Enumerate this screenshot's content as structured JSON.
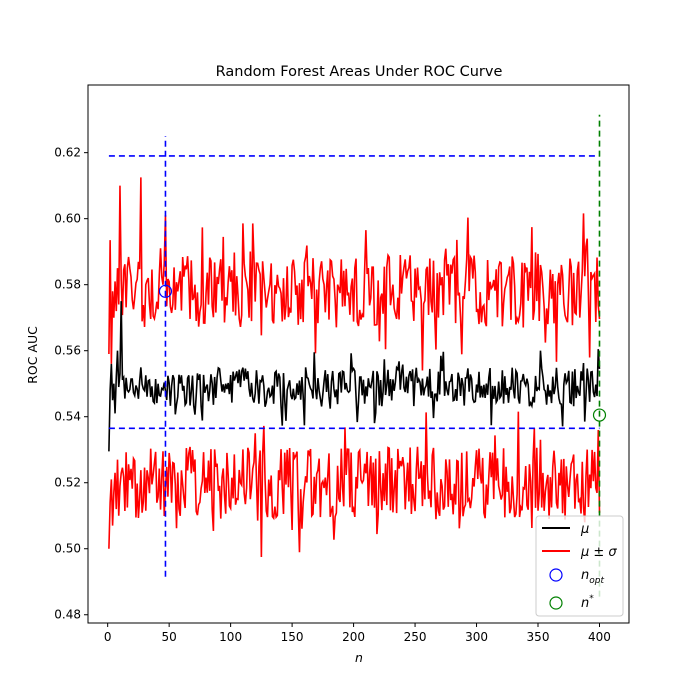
{
  "chart_data": {
    "type": "line",
    "title": "Random Forest Areas Under ROC Curve",
    "xlabel": "n",
    "ylabel": "ROC AUC",
    "xlim": [
      -16,
      424
    ],
    "ylim": [
      0.4775,
      0.6405
    ],
    "x_ticks": [
      0,
      50,
      100,
      150,
      200,
      250,
      300,
      350,
      400
    ],
    "y_ticks": [
      0.48,
      0.5,
      0.52,
      0.54,
      0.56,
      0.58,
      0.6,
      0.62
    ],
    "y_tick_labels": [
      "0.48",
      "0.50",
      "0.52",
      "0.54",
      "0.56",
      "0.58",
      "0.60",
      "0.62"
    ],
    "n_points": 400,
    "grid": false,
    "legend_position": "lower-right",
    "series": [
      {
        "name": "μ",
        "color": "#000000",
        "mean_level": 0.549,
        "fluctuation": 0.006,
        "first_values": [
          0.5295,
          0.548,
          0.556,
          0.545,
          0.55,
          0.541,
          0.552,
          0.56,
          0.549,
          0.553,
          0.575
        ]
      },
      {
        "name": "μ ± σ",
        "color": "#ff0000",
        "upper_mean_level": 0.578,
        "lower_mean_level": 0.52,
        "fluctuation": 0.011,
        "upper_first_values": [
          0.559,
          0.5935,
          0.556,
          0.578,
          0.57,
          0.581,
          0.572,
          0.585,
          0.574,
          0.61
        ],
        "lower_first_values": [
          0.5,
          0.514,
          0.521,
          0.507,
          0.517,
          0.523,
          0.512,
          0.527,
          0.51,
          0.519
        ],
        "upper_peak": 0.6125,
        "lower_minimum": 0.4975
      }
    ],
    "reference_lines": [
      {
        "orientation": "horizontal",
        "y": 0.619,
        "x_from": 1,
        "x_to": 400,
        "color": "#0000ff",
        "style": "dashed"
      },
      {
        "orientation": "horizontal",
        "y": 0.5365,
        "x_from": 1,
        "x_to": 400,
        "color": "#0000ff",
        "style": "dashed"
      },
      {
        "orientation": "vertical",
        "x": 47,
        "y_from": 0.4915,
        "y_to": 0.625,
        "color": "#0000ff",
        "style": "dashed"
      },
      {
        "orientation": "vertical",
        "x": 400,
        "y_from": 0.4855,
        "y_to": 0.6315,
        "color": "#008000",
        "style": "dashed"
      }
    ],
    "markers": [
      {
        "name": "n_opt",
        "x": 47,
        "y": 0.578,
        "color": "#0000ff",
        "shape": "open-circle"
      },
      {
        "name": "n*",
        "x": 400,
        "y": 0.5405,
        "color": "#008000",
        "shape": "open-circle"
      }
    ],
    "legend": [
      {
        "label": "μ",
        "kind": "line",
        "color": "#000000"
      },
      {
        "label": "μ ± σ",
        "kind": "line",
        "color": "#ff0000"
      },
      {
        "label": "n_opt",
        "kind": "marker",
        "color": "#0000ff",
        "label_main": "n",
        "label_sub": "opt"
      },
      {
        "label": "n*",
        "kind": "marker",
        "color": "#008000",
        "label_main": "n",
        "label_sup": "*"
      }
    ]
  }
}
